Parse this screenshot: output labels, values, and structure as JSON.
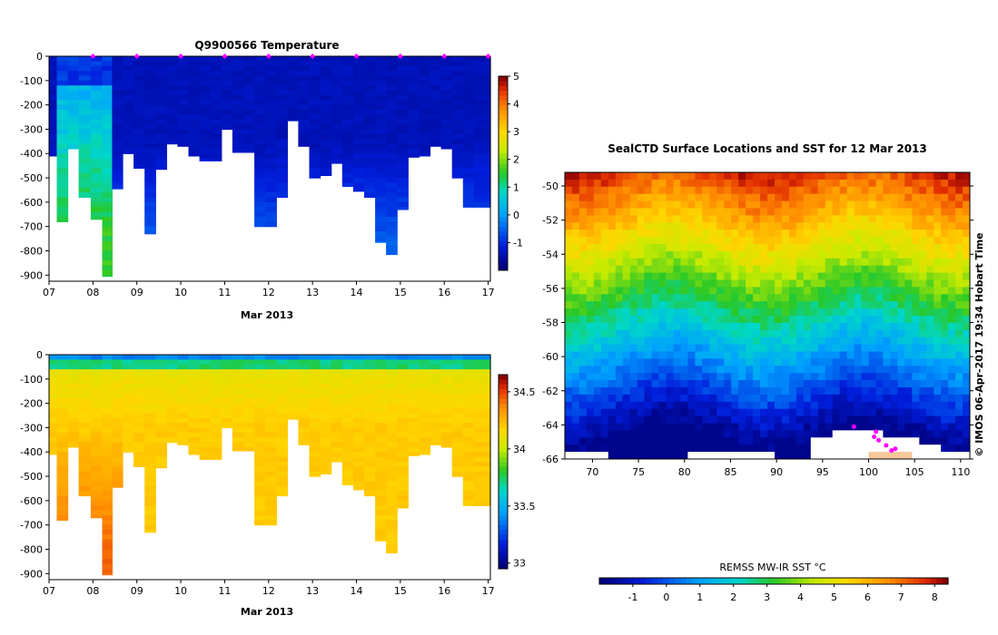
{
  "chart_data": [
    {
      "type": "heatmap",
      "title": "Q9900566  Temperature",
      "xlabel": "Mar 2013",
      "x_ticks": [
        "07",
        "08",
        "09",
        "10",
        "11",
        "12",
        "13",
        "14",
        "15",
        "16",
        "17"
      ],
      "y_ticks": [
        "0",
        "-100",
        "-200",
        "-300",
        "-400",
        "-500",
        "-600",
        "-700",
        "-800",
        "-900"
      ],
      "ylim": [
        -925,
        0
      ],
      "xlim": [
        7,
        17.05
      ],
      "colorbar": {
        "ticks": [
          "5",
          "4",
          "3",
          "2",
          "1",
          "0",
          "-1"
        ],
        "range": [
          -2,
          5
        ]
      },
      "profile_dates": [
        7.05,
        7.3,
        7.55,
        7.8,
        8.1,
        8.32,
        8.55,
        8.8,
        9.05,
        9.3,
        9.55,
        9.8,
        10.05,
        10.3,
        10.55,
        10.8,
        11.05,
        11.3,
        11.55,
        11.8,
        12.05,
        12.3,
        12.55,
        12.8,
        13.05,
        13.3,
        13.55,
        13.8,
        14.05,
        14.3,
        14.55,
        14.8,
        15.05,
        15.3,
        15.55,
        15.8,
        16.05,
        16.3,
        16.55,
        16.8
      ],
      "profile_max_depth": [
        410,
        680,
        380,
        580,
        670,
        905,
        545,
        400,
        460,
        730,
        465,
        360,
        370,
        410,
        430,
        430,
        300,
        395,
        395,
        700,
        700,
        580,
        265,
        370,
        500,
        490,
        440,
        535,
        555,
        580,
        765,
        815,
        630,
        415,
        410,
        370,
        380,
        500,
        620,
        620
      ],
      "surface_markers": [
        8.0,
        9.0,
        10.0,
        11.0,
        12.0,
        13.0,
        14.0,
        15.0,
        16.0,
        17.0
      ]
    },
    {
      "type": "heatmap",
      "title": "",
      "xlabel": "Mar 2013",
      "x_ticks": [
        "07",
        "08",
        "09",
        "10",
        "11",
        "12",
        "13",
        "14",
        "15",
        "16",
        "17"
      ],
      "y_ticks": [
        "0",
        "-100",
        "-200",
        "-300",
        "-400",
        "-500",
        "-600",
        "-700",
        "-800",
        "-900"
      ],
      "ylim": [
        -925,
        0
      ],
      "xlim": [
        7,
        17.05
      ],
      "colorbar": {
        "ticks": [
          "34.5",
          "34",
          "33.5",
          "33"
        ],
        "range": [
          32.95,
          34.65
        ]
      }
    },
    {
      "type": "heatmap",
      "title": "SealCTD Surface Locations and SST for 12 Mar 2013",
      "x_ticks": [
        "70",
        "75",
        "80",
        "85",
        "90",
        "95",
        "100",
        "105",
        "110"
      ],
      "y_ticks": [
        "-50",
        "-52",
        "-54",
        "-56",
        "-58",
        "-60",
        "-62",
        "-64",
        "-66"
      ],
      "xlim": [
        67,
        111
      ],
      "ylim": [
        -66,
        -49.2
      ],
      "colorbar": {
        "label": "REMSS MW-IR SST °C",
        "ticks": [
          "-1",
          "0",
          "1",
          "2",
          "3",
          "4",
          "5",
          "6",
          "7",
          "8"
        ],
        "range": [
          -2,
          8.4
        ]
      },
      "credit": "© IMOS 06-Apr-2017 19:34 Hobart Time",
      "track_points": [
        [
          100.8,
          -64.4
        ],
        [
          100.6,
          -64.7
        ],
        [
          101.1,
          -64.9
        ],
        [
          101.9,
          -65.2
        ],
        [
          102.5,
          -65.5
        ],
        [
          102.9,
          -65.4
        ],
        [
          98.4,
          -64.1
        ]
      ]
    }
  ]
}
